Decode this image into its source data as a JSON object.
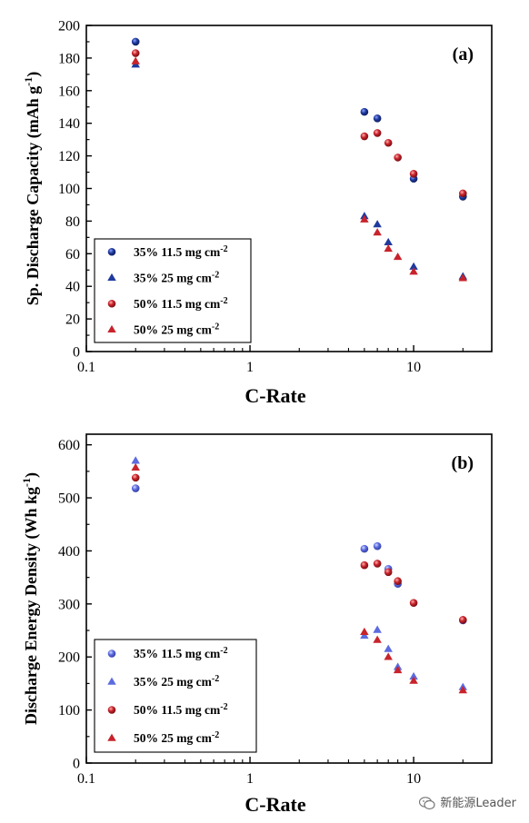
{
  "watermark": {
    "text": "新能源Leader",
    "icon": "wechat-icon"
  },
  "chart_data": [
    {
      "type": "scatter",
      "panel_label": "(a)",
      "xlabel": "C-Rate",
      "ylabel_main": "Sp. Discharge Capacity (mAh g",
      "ylabel_sup": "-1",
      "ylabel_end": ")",
      "xscale": "log",
      "xlim": [
        0.1,
        30
      ],
      "ylim": [
        0,
        200
      ],
      "xticks": [
        0.1,
        1,
        10
      ],
      "xtick_labels": [
        "0.1",
        "1",
        "10"
      ],
      "yticks": [
        0,
        20,
        40,
        60,
        80,
        100,
        120,
        140,
        160,
        180,
        200
      ],
      "ytick_labels": [
        "0",
        "20",
        "40",
        "60",
        "80",
        "100",
        "120",
        "140",
        "160",
        "180",
        "200"
      ],
      "legend_position": "bottom-left",
      "series": [
        {
          "name": "35% 11.5 mg cm",
          "name_sup": "-2",
          "marker": "circle",
          "color": "#1f3a9e",
          "x": [
            0.2,
            5,
            6,
            10,
            20
          ],
          "y": [
            190,
            147,
            143,
            106,
            95
          ]
        },
        {
          "name": "35% 25 mg cm",
          "name_sup": "-2",
          "marker": "triangle",
          "color": "#1f3a9e",
          "x": [
            0.2,
            5,
            6,
            7,
            10,
            20
          ],
          "y": [
            176,
            83,
            78,
            67,
            52,
            46
          ]
        },
        {
          "name": "50% 11.5 mg cm",
          "name_sup": "-2",
          "marker": "circle",
          "color": "#c8232b",
          "x": [
            0.2,
            5,
            6,
            7,
            8,
            10,
            20
          ],
          "y": [
            183,
            132,
            134,
            128,
            119,
            109,
            97
          ]
        },
        {
          "name": "50% 25 mg cm",
          "name_sup": "-2",
          "marker": "triangle",
          "color": "#c8232b",
          "x": [
            0.2,
            5,
            6,
            7,
            8,
            10,
            20
          ],
          "y": [
            178,
            81,
            73,
            63,
            58,
            49,
            45
          ]
        }
      ]
    },
    {
      "type": "scatter",
      "panel_label": "(b)",
      "xlabel": "C-Rate",
      "ylabel_main": "Discharge Energy Density (Wh kg",
      "ylabel_sup": "-1",
      "ylabel_end": ")",
      "xscale": "log",
      "xlim": [
        0.1,
        30
      ],
      "ylim": [
        0,
        620
      ],
      "xticks": [
        0.1,
        1,
        10
      ],
      "xtick_labels": [
        "0.1",
        "1",
        "10"
      ],
      "yticks": [
        0,
        100,
        200,
        300,
        400,
        500,
        600
      ],
      "ytick_labels": [
        "0",
        "100",
        "200",
        "300",
        "400",
        "500",
        "600"
      ],
      "legend_position": "bottom-left",
      "series": [
        {
          "name": "35% 11.5 mg cm",
          "name_sup": "-2",
          "marker": "circle",
          "color": "#5b6be0",
          "x": [
            0.2,
            5,
            6,
            7,
            8,
            20
          ],
          "y": [
            518,
            404,
            409,
            366,
            338,
            269
          ]
        },
        {
          "name": "35% 25 mg cm",
          "name_sup": "-2",
          "marker": "triangle",
          "color": "#5b6be0",
          "x": [
            0.2,
            5,
            6,
            7,
            8,
            10,
            20
          ],
          "y": [
            570,
            240,
            251,
            215,
            181,
            163,
            143
          ]
        },
        {
          "name": "50% 11.5 mg cm",
          "name_sup": "-2",
          "marker": "circle",
          "color": "#c8232b",
          "x": [
            0.2,
            5,
            6,
            7,
            8,
            10,
            20
          ],
          "y": [
            538,
            373,
            376,
            360,
            343,
            302,
            270
          ]
        },
        {
          "name": "50% 25 mg cm",
          "name_sup": "-2",
          "marker": "triangle",
          "color": "#c8232b",
          "x": [
            0.2,
            5,
            6,
            7,
            8,
            10,
            20
          ],
          "y": [
            557,
            247,
            232,
            200,
            175,
            155,
            137
          ]
        }
      ]
    }
  ]
}
